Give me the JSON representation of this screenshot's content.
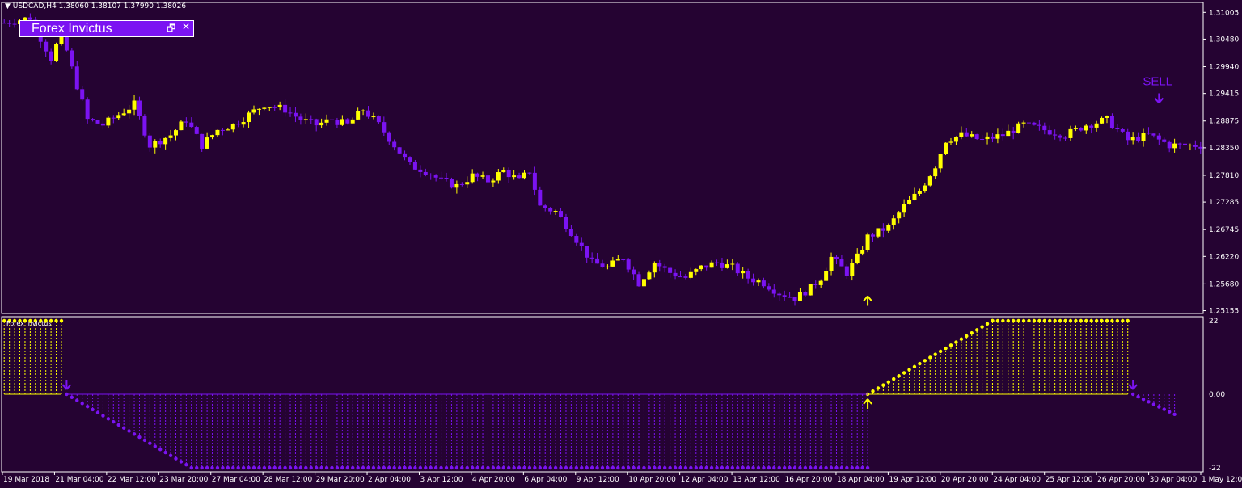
{
  "header": {
    "symbol": "USDCAD,H4",
    "ohlc": "1.38060 1.38107 1.37990 1.38026"
  },
  "panel": {
    "title": "Forex Invictus",
    "restore_glyph": "🗗",
    "close_glyph": "✕"
  },
  "indicator_label": "Forex Invictus",
  "colors": {
    "background": "#250332",
    "bull": "#ffff00",
    "bear": "#7b13f2",
    "grid_line": "#ffffff",
    "panel": "#7b13f2"
  },
  "chart_data": [
    {
      "type": "candlestick",
      "y_ticks": [
        "1.31005",
        "1.30480",
        "1.29940",
        "1.29415",
        "1.28875",
        "1.28350",
        "1.27810",
        "1.27285",
        "1.26745",
        "1.26220",
        "1.25680",
        "1.25155"
      ],
      "ylim": [
        1.251,
        1.312
      ],
      "x_tick_labels": [
        "19 Mar 2018",
        "21 Mar 04:00",
        "22 Mar 12:00",
        "23 Mar 20:00",
        "27 Mar 04:00",
        "28 Mar 12:00",
        "29 Mar 20:00",
        "2 Apr 04:00",
        "3 Apr 12:00",
        "4 Apr 20:00",
        "6 Apr 04:00",
        "9 Apr 12:00",
        "10 Apr 20:00",
        "12 Apr 04:00",
        "13 Apr 12:00",
        "16 Apr 20:00",
        "18 Apr 04:00",
        "19 Apr 12:00",
        "20 Apr 20:00",
        "24 Apr 04:00",
        "25 Apr 12:00",
        "26 Apr 20:00",
        "30 Apr 04:00",
        "1 May 12:00"
      ],
      "close_waypoints": [
        [
          0,
          1.308
        ],
        [
          5,
          1.309
        ],
        [
          9,
          1.301
        ],
        [
          11,
          1.306
        ],
        [
          13,
          1.299
        ],
        [
          16,
          1.289
        ],
        [
          19,
          1.288
        ],
        [
          22,
          1.29
        ],
        [
          25,
          1.292
        ],
        [
          28,
          1.284
        ],
        [
          32,
          1.286
        ],
        [
          35,
          1.289
        ],
        [
          38,
          1.284
        ],
        [
          41,
          1.287
        ],
        [
          44,
          1.288
        ],
        [
          47,
          1.29
        ],
        [
          50,
          1.292
        ],
        [
          54,
          1.291
        ],
        [
          57,
          1.289
        ],
        [
          60,
          1.288
        ],
        [
          63,
          1.289
        ],
        [
          66,
          1.288
        ],
        [
          69,
          1.291
        ],
        [
          72,
          1.288
        ],
        [
          75,
          1.284
        ],
        [
          78,
          1.28
        ],
        [
          81,
          1.279
        ],
        [
          84,
          1.277
        ],
        [
          87,
          1.276
        ],
        [
          90,
          1.278
        ],
        [
          93,
          1.277
        ],
        [
          96,
          1.279
        ],
        [
          99,
          1.277
        ],
        [
          101,
          1.279
        ],
        [
          103,
          1.272
        ],
        [
          106,
          1.271
        ],
        [
          109,
          1.267
        ],
        [
          111,
          1.264
        ],
        [
          113,
          1.261
        ],
        [
          116,
          1.26
        ],
        [
          119,
          1.262
        ],
        [
          122,
          1.257
        ],
        [
          125,
          1.261
        ],
        [
          128,
          1.259
        ],
        [
          131,
          1.258
        ],
        [
          134,
          1.26
        ],
        [
          137,
          1.261
        ],
        [
          140,
          1.26
        ],
        [
          143,
          1.258
        ],
        [
          146,
          1.257
        ],
        [
          149,
          1.255
        ],
        [
          152,
          1.254
        ],
        [
          155,
          1.256
        ],
        [
          157,
          1.258
        ],
        [
          159,
          1.262
        ],
        [
          162,
          1.259
        ],
        [
          164,
          1.262
        ],
        [
          166,
          1.266
        ],
        [
          170,
          1.268
        ],
        [
          173,
          1.272
        ],
        [
          176,
          1.275
        ],
        [
          179,
          1.28
        ],
        [
          181,
          1.285
        ],
        [
          184,
          1.286
        ],
        [
          188,
          1.285
        ],
        [
          192,
          1.286
        ],
        [
          196,
          1.288
        ],
        [
          200,
          1.287
        ],
        [
          204,
          1.286
        ],
        [
          208,
          1.288
        ],
        [
          212,
          1.289
        ],
        [
          216,
          1.285
        ],
        [
          220,
          1.286
        ],
        [
          224,
          1.284
        ],
        [
          228,
          1.284
        ],
        [
          230,
          1.284
        ]
      ],
      "annotations": [
        {
          "label": "SELL",
          "x_index": 222,
          "price": 1.2945
        },
        {
          "label": "buy-arrow",
          "x_index": 166,
          "price": 1.2525
        }
      ]
    },
    {
      "type": "scatter",
      "y_ticks": [
        "22",
        "0.00",
        "-22"
      ],
      "ylim": [
        -22,
        22
      ],
      "segments": [
        {
          "from": 0,
          "to": 11,
          "start": 22,
          "end": 22,
          "color": "bull"
        },
        {
          "from": 12,
          "to": 36,
          "start": 0,
          "end": -22,
          "color": "bear"
        },
        {
          "from": 36,
          "to": 166,
          "start": -22,
          "end": -22,
          "color": "bear"
        },
        {
          "from": 166,
          "to": 190,
          "start": 0,
          "end": 22,
          "color": "bull"
        },
        {
          "from": 190,
          "to": 216,
          "start": 22,
          "end": 22,
          "color": "bull"
        },
        {
          "from": 217,
          "to": 225,
          "start": 0,
          "end": -6,
          "color": "bear"
        }
      ]
    }
  ]
}
